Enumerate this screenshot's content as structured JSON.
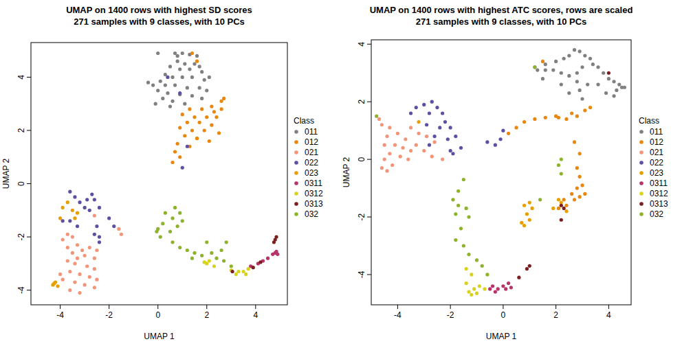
{
  "chart_data": [
    {
      "type": "scatter",
      "title": "UMAP on 1400 rows with highest SD scores",
      "subtitle": "271 samples with 9 classes, with 10 PCs",
      "x_label": "UMAP 1",
      "y_label": "UMAP 2",
      "legend_title": "Class",
      "legend": "right",
      "xlim": [
        -5.2,
        5.3
      ],
      "ylim": [
        -4.55,
        5.3
      ],
      "xticks": [
        -4,
        -2,
        0,
        2,
        4
      ],
      "yticks": [
        -4,
        -2,
        0,
        2,
        4
      ],
      "marker": "circle",
      "series": [
        {
          "name": "011",
          "color": "#808080",
          "x": [
            0.7,
            1.0,
            1.3,
            1.6,
            0.8,
            1.1,
            1.5,
            0.5,
            0.9,
            1.3,
            1.8,
            0.3,
            0.6,
            1.0,
            1.4,
            1.9,
            0.1,
            -0.4,
            -0.2,
            0.3,
            0.7,
            1.2,
            1.7,
            2.0,
            0.0,
            0.4,
            0.9,
            1.4,
            1.8,
            0.2,
            0.6,
            1.1,
            -0.1,
            0.5,
            0.8,
            0.0,
            1.7,
            2.1
          ],
          "values": [
            4.9,
            4.9,
            4.85,
            4.8,
            4.6,
            4.5,
            4.5,
            4.4,
            4.3,
            4.3,
            4.2,
            4.1,
            4.0,
            4.0,
            4.0,
            3.9,
            3.85,
            3.8,
            3.7,
            3.7,
            3.7,
            3.6,
            3.6,
            3.5,
            3.5,
            3.4,
            3.35,
            3.3,
            3.2,
            3.2,
            3.1,
            3.0,
            3.0,
            2.9,
            4.8,
            4.9,
            4.4,
            4.0
          ]
        },
        {
          "name": "012",
          "color": "#e8870b",
          "x": [
            1.3,
            1.8,
            2.3,
            2.6,
            2.7,
            1.0,
            1.5,
            2.0,
            2.4,
            1.2,
            1.7,
            2.2,
            0.9,
            1.4,
            1.9,
            2.5,
            1.1,
            1.6,
            2.1,
            0.8,
            1.3,
            0.7,
            0.9,
            0.6,
            1.6,
            2.6,
            1.4,
            1.6,
            2.2
          ],
          "values": [
            2.8,
            2.8,
            2.7,
            3.1,
            3.2,
            2.6,
            2.5,
            2.5,
            2.5,
            2.3,
            2.3,
            2.2,
            2.1,
            2.0,
            2.0,
            1.9,
            1.8,
            1.7,
            1.6,
            1.5,
            1.4,
            1.2,
            1.0,
            0.8,
            1.7,
            2.8,
            4.9,
            4.6,
            2.9
          ]
        },
        {
          "name": "021",
          "color": "#f29578",
          "x": [
            -3.7,
            -3.5,
            -3.3,
            -3.7,
            -3.1,
            -3.5,
            -3.0,
            -3.3,
            -2.8,
            -2.6,
            -3.7,
            -3.4,
            -2.9,
            -2.6,
            -3.6,
            -3.2,
            -2.8,
            -2.5,
            -3.4,
            -3.0,
            -2.6,
            -3.6,
            -3.2,
            -3.9,
            -2.5,
            -1.6,
            -1.5,
            -2.6,
            -3.9,
            -4.0
          ],
          "values": [
            -1.9,
            -2.0,
            -2.3,
            -2.4,
            -2.5,
            -2.6,
            -2.7,
            -2.8,
            -2.4,
            -2.8,
            -2.9,
            -3.0,
            -3.1,
            -3.2,
            -3.3,
            -3.4,
            -3.5,
            -3.6,
            -3.7,
            -3.8,
            -3.9,
            -4.0,
            -4.1,
            -3.6,
            -2.5,
            -1.7,
            -1.9,
            -1.2,
            -2.1,
            -3.4
          ]
        },
        {
          "name": "022",
          "color": "#5e4fa2",
          "x": [
            -3.6,
            -3.4,
            -3.2,
            -2.9,
            -2.7,
            -2.6,
            -2.4,
            -3.0,
            -2.8,
            -3.6,
            -3.3,
            -2.5,
            -2.4,
            -2.4,
            -2.0,
            -1.8,
            -2.6,
            -3.9,
            1.2,
            1.0,
            0.9,
            0.4
          ],
          "values": [
            -0.3,
            -0.5,
            -0.7,
            -0.6,
            -0.4,
            -0.6,
            -0.9,
            -0.9,
            -1.0,
            -1.4,
            -1.6,
            -1.6,
            -2.0,
            -2.2,
            -1.3,
            -1.6,
            -1.9,
            -1.4,
            1.4,
            0.6,
            3.4,
            4.0
          ]
        },
        {
          "name": "023",
          "color": "#e69f00",
          "x": [
            -4.2,
            -4.3,
            -4.1,
            -4.25,
            -3.7,
            -3.9,
            -3.5,
            -3.3,
            -4.0,
            -3.4
          ],
          "values": [
            -3.7,
            -3.8,
            -3.85,
            -3.75,
            -0.7,
            -0.9,
            -1.0,
            -1.1,
            -1.3,
            -1.3
          ]
        },
        {
          "name": "0311",
          "color": "#b8336a",
          "x": [
            4.1,
            4.3,
            4.5,
            4.7,
            4.8,
            4.9,
            4.85,
            3.8
          ],
          "values": [
            -3.0,
            -2.9,
            -2.8,
            -2.65,
            -2.6,
            -2.65,
            -2.55,
            -3.1
          ]
        },
        {
          "name": "0312",
          "color": "#d8d21a",
          "x": [
            1.9,
            2.1,
            2.0,
            2.3,
            3.0,
            3.3,
            3.5,
            3.7,
            3.6,
            3.2
          ],
          "values": [
            -2.95,
            -2.9,
            -3.0,
            -3.1,
            -3.25,
            -3.3,
            -3.3,
            -3.2,
            -3.4,
            -3.4
          ]
        },
        {
          "name": "0313",
          "color": "#7a1f1f",
          "x": [
            3.9,
            4.2,
            4.8,
            4.85,
            4.75,
            3.05
          ],
          "values": [
            -3.15,
            -2.95,
            -2.1,
            -2.0,
            -2.2,
            -3.3
          ]
        },
        {
          "name": "032",
          "color": "#8db32d",
          "x": [
            0.7,
            0.9,
            0.3,
            0.6,
            1.0,
            0.2,
            0.8,
            0.0,
            0.5,
            0.1,
            0.6,
            0.9,
            1.2,
            1.5,
            1.8,
            2.2,
            2.4,
            2.7,
            2.8,
            2.6,
            2.0,
            1.4,
            -0.05,
            3.0
          ],
          "values": [
            -0.9,
            -1.1,
            -1.1,
            -1.3,
            -1.4,
            -1.5,
            -1.6,
            -1.7,
            -1.8,
            -2.0,
            -2.2,
            -2.4,
            -2.5,
            -2.6,
            -2.7,
            -2.6,
            -2.8,
            -2.9,
            -2.2,
            -2.5,
            -2.2,
            -2.8,
            -1.8,
            -3.1
          ]
        }
      ]
    },
    {
      "type": "scatter",
      "title": "UMAP on 1400 rows with highest ATC scores, rows are scaled",
      "subtitle": "271 samples with 9 classes, with 10 PCs",
      "x_label": "UMAP 1",
      "y_label": "UMAP 2",
      "legend_title": "Class",
      "legend": "right",
      "xlim": [
        -5.0,
        4.85
      ],
      "ylim": [
        -5.05,
        4.15
      ],
      "xticks": [
        -4,
        -2,
        0,
        2,
        4
      ],
      "yticks": [
        -4,
        -2,
        0,
        2,
        4
      ],
      "marker": "circle",
      "series": [
        {
          "name": "011",
          "color": "#808080",
          "x": [
            2.7,
            2.9,
            3.1,
            3.3,
            2.5,
            2.3,
            2.0,
            1.6,
            1.6,
            1.9,
            2.2,
            2.5,
            2.8,
            3.0,
            3.4,
            3.6,
            3.8,
            4.0,
            4.2,
            4.4,
            4.5,
            4.3,
            4.6,
            4.2,
            3.9,
            3.6,
            3.2,
            2.9,
            2.5,
            2.2,
            1.3,
            1.2,
            3.0,
            1.5,
            2.8
          ],
          "values": [
            3.8,
            3.75,
            3.6,
            3.5,
            3.6,
            3.5,
            3.4,
            3.3,
            3.1,
            3.1,
            3.0,
            2.9,
            3.0,
            3.2,
            3.3,
            3.2,
            3.0,
            2.8,
            2.7,
            2.6,
            2.5,
            2.4,
            2.5,
            2.2,
            2.3,
            2.6,
            2.6,
            2.4,
            2.3,
            2.6,
            3.1,
            3.2,
            2.1,
            2.8,
            2.7
          ]
        },
        {
          "name": "012",
          "color": "#e8870b",
          "x": [
            1.5,
            3.3,
            3.1,
            2.8,
            2.4,
            2.0,
            1.6,
            1.2,
            0.8,
            0.5,
            0.2,
            2.6,
            2.9,
            2.8,
            2.9,
            3.0,
            2.8,
            2.6,
            2.9,
            2.7,
            2.4,
            2.1,
            2.3,
            3.1,
            2.1,
            2.7
          ],
          "values": [
            3.4,
            1.8,
            1.7,
            1.5,
            1.4,
            1.5,
            1.45,
            1.4,
            1.3,
            1.1,
            0.9,
            1.6,
            0.2,
            -0.3,
            -0.6,
            -0.9,
            -1.0,
            -1.2,
            -1.3,
            -1.4,
            -1.6,
            -1.7,
            -1.4,
            -1.2,
            1.45,
            0.6
          ]
        },
        {
          "name": "021",
          "color": "#f29578",
          "x": [
            -4.6,
            -4.3,
            -4.0,
            -4.4,
            -3.7,
            -4.5,
            -4.1,
            -3.8,
            -3.5,
            -4.3,
            -3.9,
            -4.5,
            -4.2,
            -4.6,
            -4.4,
            -3.6,
            -3.2,
            -2.9,
            -2.6,
            -3.0,
            -2.7,
            -3.3,
            -2.3,
            -3.5,
            -4.7
          ],
          "values": [
            1.2,
            1.1,
            0.9,
            0.8,
            0.7,
            0.5,
            0.5,
            0.4,
            0.3,
            0.2,
            0.1,
            0.0,
            -0.2,
            -0.3,
            -0.4,
            0.0,
            0.9,
            0.8,
            0.6,
            0.3,
            0.1,
            0.5,
            0.0,
            1.1,
            1.4
          ]
        },
        {
          "name": "022",
          "color": "#5e4fa2",
          "x": [
            -3.5,
            -3.3,
            -3.0,
            -2.7,
            -2.5,
            -2.3,
            -2.2,
            -2.0,
            -1.8,
            -1.6,
            -2.8,
            -2.9,
            -2.4,
            -2.6,
            -2.1,
            -2.8,
            -2.0,
            -1.9,
            -0.6,
            -0.1,
            0.0,
            -0.3
          ],
          "values": [
            1.6,
            1.8,
            1.9,
            2.0,
            1.8,
            1.6,
            1.3,
            1.1,
            0.8,
            0.4,
            1.6,
            1.2,
            1.1,
            0.8,
            0.7,
            0.5,
            0.3,
            0.2,
            0.6,
            0.7,
            1.0,
            0.5
          ]
        },
        {
          "name": "023",
          "color": "#e69f00",
          "x": [
            1.0,
            0.8,
            1.1,
            0.9,
            1.0,
            0.8,
            0.7,
            2.1,
            2.2,
            2.4,
            1.9,
            -3.2
          ],
          "values": [
            -1.5,
            -1.6,
            -1.7,
            -1.9,
            -2.1,
            -2.3,
            -2.2,
            -1.4,
            -1.5,
            -1.8,
            -1.7,
            1.3
          ]
        },
        {
          "name": "0311",
          "color": "#b8336a",
          "x": [
            -0.4,
            -0.2,
            0.0,
            0.2,
            0.1,
            -0.3,
            0.3,
            -0.5
          ],
          "values": [
            -4.4,
            -4.5,
            -4.4,
            -4.3,
            -4.5,
            -4.6,
            -4.45,
            -4.5
          ]
        },
        {
          "name": "0312",
          "color": "#d8d21a",
          "x": [
            -1.4,
            -1.2,
            -1.4,
            -1.1,
            -1.3,
            -1.0,
            -1.2,
            -0.9,
            -0.7
          ],
          "values": [
            -3.8,
            -4.0,
            -4.3,
            -4.5,
            -4.6,
            -4.65,
            -4.7,
            -4.4,
            -4.5
          ]
        },
        {
          "name": "0313",
          "color": "#7a1f1f",
          "x": [
            0.6,
            0.9,
            1.0,
            2.2,
            2.2,
            4.0,
            2.3
          ],
          "values": [
            -4.1,
            -3.8,
            -3.7,
            -2.1,
            -1.6,
            3.0,
            -1.7
          ]
        },
        {
          "name": "032",
          "color": "#8db32d",
          "x": [
            -4.8,
            1.2,
            -1.7,
            -1.5,
            -1.9,
            -1.7,
            -1.4,
            -1.8,
            -1.3,
            -1.6,
            -1.8,
            -1.5,
            -1.3,
            -1.0,
            -0.8,
            -0.6,
            2.2,
            2.1,
            2.2,
            1.4
          ],
          "values": [
            1.5,
            3.2,
            -1.1,
            -0.7,
            -1.4,
            -1.6,
            -1.7,
            -1.9,
            -2.0,
            -2.4,
            -2.8,
            -3.0,
            -3.3,
            -3.5,
            -3.7,
            -4.0,
            0.0,
            -0.2,
            -0.5,
            -1.4
          ]
        }
      ]
    }
  ]
}
